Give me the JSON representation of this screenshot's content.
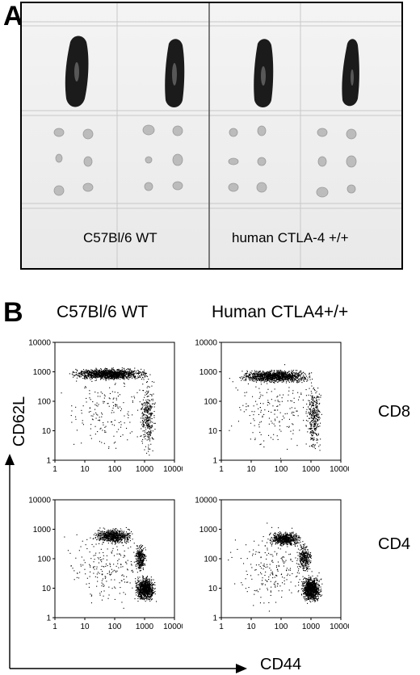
{
  "panel_a": {
    "letter": "A",
    "labels": [
      "C57Bl/6 WT",
      "human CTLA-4 +/+"
    ]
  },
  "panel_b": {
    "letter": "B",
    "column_titles": [
      "C57Bl/6 WT",
      "Human CTLA4+/+"
    ],
    "row_labels": [
      "CD8",
      "CD4"
    ],
    "y_axis_label": "CD62L",
    "x_axis_label": "CD44"
  },
  "chart_data": [
    {
      "type": "scatter",
      "id": "cd8-wt",
      "xscale": "log",
      "yscale": "log",
      "xlim": [
        1,
        10000
      ],
      "ylim": [
        1,
        10000
      ],
      "x_ticks": [
        "1",
        "10",
        "100",
        "1000",
        "10000"
      ],
      "y_ticks": [
        "1",
        "10",
        "100",
        "1000",
        "10000"
      ],
      "populations": [
        {
          "x": [
            2,
            2000
          ],
          "y": [
            500,
            1500
          ],
          "n": 1300
        },
        {
          "x": [
            600,
            2500
          ],
          "y": [
            1,
            1000
          ],
          "n": 320
        },
        {
          "x": [
            1,
            3000
          ],
          "y": [
            1,
            3000
          ],
          "n": 180
        }
      ]
    },
    {
      "type": "scatter",
      "id": "cd8-hctla4",
      "xscale": "log",
      "yscale": "log",
      "xlim": [
        1,
        10000
      ],
      "ylim": [
        1,
        10000
      ],
      "x_ticks": [
        "1",
        "10",
        "100",
        "1000",
        "10000"
      ],
      "y_ticks": [
        "1",
        "10",
        "100",
        "1000",
        "10000"
      ],
      "populations": [
        {
          "x": [
            2,
            2000
          ],
          "y": [
            400,
            1300
          ],
          "n": 1200
        },
        {
          "x": [
            600,
            2500
          ],
          "y": [
            1,
            800
          ],
          "n": 330
        },
        {
          "x": [
            1,
            3000
          ],
          "y": [
            1,
            3000
          ],
          "n": 180
        }
      ]
    },
    {
      "type": "scatter",
      "id": "cd4-wt",
      "xscale": "log",
      "yscale": "log",
      "xlim": [
        1,
        10000
      ],
      "ylim": [
        1,
        10000
      ],
      "x_ticks": [
        "1",
        "10",
        "100",
        "1000",
        "10000"
      ],
      "y_ticks": [
        "1",
        "10",
        "100",
        "1000",
        "10000"
      ],
      "populations": [
        {
          "x": [
            15,
            500
          ],
          "y": [
            300,
            1200
          ],
          "n": 700
        },
        {
          "x": [
            400,
            2500
          ],
          "y": [
            3,
            30
          ],
          "n": 900
        },
        {
          "x": [
            400,
            1200
          ],
          "y": [
            30,
            400
          ],
          "n": 300
        },
        {
          "x": [
            1,
            3000
          ],
          "y": [
            1,
            3000
          ],
          "n": 220
        }
      ]
    },
    {
      "type": "scatter",
      "id": "cd4-hctla4",
      "xscale": "log",
      "yscale": "log",
      "xlim": [
        1,
        10000
      ],
      "ylim": [
        1,
        10000
      ],
      "x_ticks": [
        "1",
        "10",
        "100",
        "1000",
        "10000"
      ],
      "y_ticks": [
        "1",
        "10",
        "100",
        "1000",
        "10000"
      ],
      "populations": [
        {
          "x": [
            30,
            600
          ],
          "y": [
            250,
            900
          ],
          "n": 650
        },
        {
          "x": [
            400,
            2500
          ],
          "y": [
            3,
            30
          ],
          "n": 950
        },
        {
          "x": [
            300,
            1200
          ],
          "y": [
            30,
            400
          ],
          "n": 300
        },
        {
          "x": [
            1,
            3000
          ],
          "y": [
            1,
            3000
          ],
          "n": 220
        }
      ]
    }
  ]
}
